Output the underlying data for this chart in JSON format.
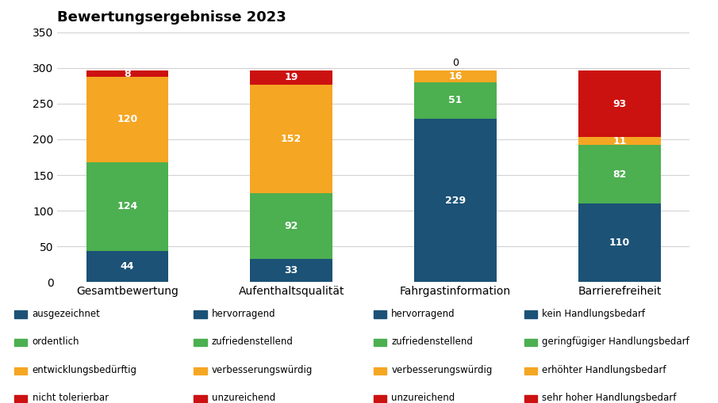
{
  "title": "Bewertungsergebnisse 2023",
  "categories": [
    "Gesamtbewertung",
    "Aufenthaltsqualität",
    "Fahrgastinformation",
    "Barrierefreiheit"
  ],
  "segments": [
    {
      "values": [
        44,
        33,
        229,
        110
      ],
      "color": "#1b5276"
    },
    {
      "values": [
        124,
        92,
        51,
        82
      ],
      "color": "#4caf50"
    },
    {
      "values": [
        120,
        152,
        16,
        11
      ],
      "color": "#f5a623"
    },
    {
      "values": [
        8,
        19,
        0,
        93
      ],
      "color": "#cc1111"
    }
  ],
  "ylim": [
    0,
    350
  ],
  "yticks": [
    0,
    50,
    100,
    150,
    200,
    250,
    300,
    350
  ],
  "background_color": "#ffffff",
  "bar_width": 0.5,
  "legend_col_labels": [
    [
      "ausgezeichnet",
      "ordentlich",
      "entwicklungsbedürftig",
      "nicht tolerierbar"
    ],
    [
      "hervorragend",
      "zufriedenstellend",
      "verbesserungswürdig",
      "unzureichend"
    ],
    [
      "hervorragend",
      "zufriedenstellend",
      "verbesserungswürdig",
      "unzureichend"
    ],
    [
      "kein Handlungsbedarf",
      "geringfügiger Handlungsbedarf",
      "erhöhter Handlungsbedarf",
      "sehr hoher Handlungsbedarf"
    ]
  ]
}
